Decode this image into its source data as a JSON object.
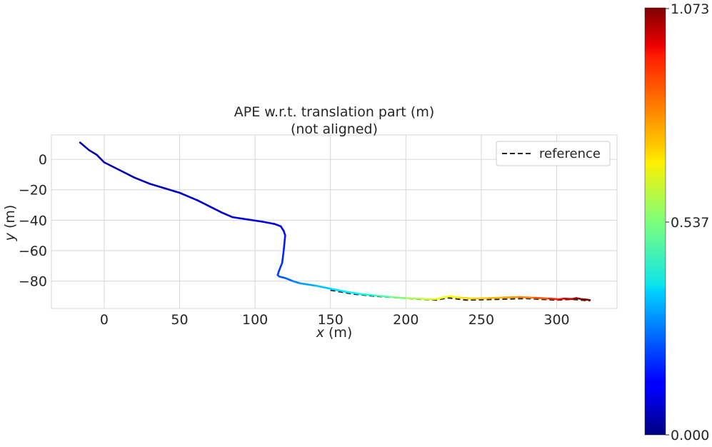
{
  "chart_data": {
    "type": "line",
    "title": "APE w.r.t. translation part (m)",
    "subtitle": "(not aligned)",
    "xlabel": "x (m)",
    "ylabel": "y (m)",
    "xlim": [
      -35,
      340
    ],
    "ylim": [
      -98,
      16
    ],
    "xticks": [
      0,
      50,
      100,
      150,
      200,
      250,
      300
    ],
    "yticks": [
      0,
      -20,
      -40,
      -60,
      -80
    ],
    "grid": true,
    "legend": {
      "position": "top-right",
      "entries": [
        "reference"
      ]
    },
    "colorbar": {
      "min": 0.0,
      "max": 1.073,
      "ticks": [
        "0.000",
        "0.537",
        "1.073"
      ],
      "colormap": "jet"
    },
    "reference": {
      "name": "reference",
      "style": "dashed",
      "color": "#262626",
      "x": [
        150,
        165,
        180,
        195,
        210,
        220,
        228,
        240,
        260,
        280,
        300,
        310,
        322
      ],
      "y": [
        -86,
        -88.5,
        -90,
        -91,
        -92,
        -92.5,
        -91,
        -92.5,
        -92,
        -91.5,
        -92.5,
        -92,
        -93
      ]
    },
    "estimate": {
      "x": [
        -16,
        -10,
        -5,
        0,
        10,
        20,
        30,
        40,
        50,
        62,
        70,
        78,
        85,
        95,
        105,
        113,
        117,
        119,
        120,
        119,
        118,
        116,
        115,
        116,
        120,
        125,
        130,
        140,
        150,
        160,
        170,
        180,
        190,
        200,
        210,
        218,
        222,
        226,
        229,
        235,
        245,
        255,
        265,
        275,
        285,
        295,
        302,
        305,
        310,
        313,
        316,
        320,
        322
      ],
      "y": [
        11,
        6,
        3,
        -2,
        -7,
        -12,
        -16,
        -19,
        -22,
        -27,
        -31,
        -35,
        -38,
        -39.5,
        -41,
        -42.5,
        -44,
        -47,
        -50,
        -60,
        -68,
        -73,
        -76,
        -77,
        -78,
        -80,
        -81.5,
        -83,
        -85,
        -87,
        -88.5,
        -89.5,
        -90.5,
        -91.2,
        -91.7,
        -92,
        -91.5,
        -90.5,
        -90,
        -90.8,
        -91.5,
        -91.2,
        -90.8,
        -90.5,
        -91,
        -91.5,
        -92,
        -91.5,
        -91.8,
        -91.2,
        -91.8,
        -92.2,
        -92.5
      ],
      "error": [
        0.05,
        0.05,
        0.06,
        0.06,
        0.06,
        0.07,
        0.07,
        0.07,
        0.08,
        0.08,
        0.09,
        0.09,
        0.1,
        0.1,
        0.11,
        0.12,
        0.13,
        0.14,
        0.15,
        0.17,
        0.18,
        0.19,
        0.2,
        0.21,
        0.23,
        0.26,
        0.29,
        0.32,
        0.36,
        0.38,
        0.4,
        0.45,
        0.52,
        0.56,
        0.6,
        0.63,
        0.66,
        0.66,
        0.67,
        0.69,
        0.72,
        0.74,
        0.76,
        0.79,
        0.82,
        0.88,
        0.93,
        0.97,
        1.0,
        1.04,
        1.06,
        1.07,
        1.073
      ]
    }
  }
}
